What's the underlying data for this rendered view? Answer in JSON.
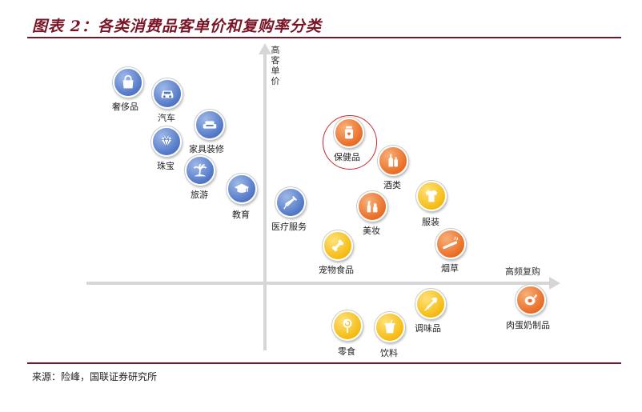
{
  "title": "图表 2：各类消费品客单价和复购率分类",
  "source": "来源：险峰，国联证券研究所",
  "axes": {
    "y_label": "高客单价",
    "x_label": "高频复购"
  },
  "colors": {
    "brand": "#7a1426",
    "blue": "#5177c6",
    "orange": "#ea6d25",
    "yellow": "#f5bb12",
    "highlight": "#c8262d"
  },
  "categories": [
    {
      "label": "奢侈品",
      "color": "blue",
      "icon": "handbag-icon"
    },
    {
      "label": "汽车",
      "color": "blue",
      "icon": "car-icon"
    },
    {
      "label": "家具装修",
      "color": "blue",
      "icon": "sofa-icon"
    },
    {
      "label": "珠宝",
      "color": "blue",
      "icon": "diamond-icon"
    },
    {
      "label": "旅游",
      "color": "blue",
      "icon": "palm-tree-icon"
    },
    {
      "label": "教育",
      "color": "blue",
      "icon": "graduation-cap-icon"
    },
    {
      "label": "医疗服务",
      "color": "blue",
      "icon": "syringe-icon"
    },
    {
      "label": "保健品",
      "color": "orange",
      "icon": "pill-bottle-icon",
      "highlighted": true
    },
    {
      "label": "酒类",
      "color": "orange",
      "icon": "bottles-icon"
    },
    {
      "label": "美妆",
      "color": "orange",
      "icon": "cosmetics-icon"
    },
    {
      "label": "服装",
      "color": "yellow",
      "icon": "shirt-icon"
    },
    {
      "label": "烟草",
      "color": "orange",
      "icon": "cigarette-icon"
    },
    {
      "label": "宠物食品",
      "color": "yellow",
      "icon": "bone-icon"
    },
    {
      "label": "调味品",
      "color": "yellow",
      "icon": "seasoning-icon"
    },
    {
      "label": "肉蛋奶制品",
      "color": "orange",
      "icon": "ham-icon"
    },
    {
      "label": "零食",
      "color": "yellow",
      "icon": "lollipop-icon"
    },
    {
      "label": "饮料",
      "color": "yellow",
      "icon": "drink-cup-icon"
    }
  ]
}
